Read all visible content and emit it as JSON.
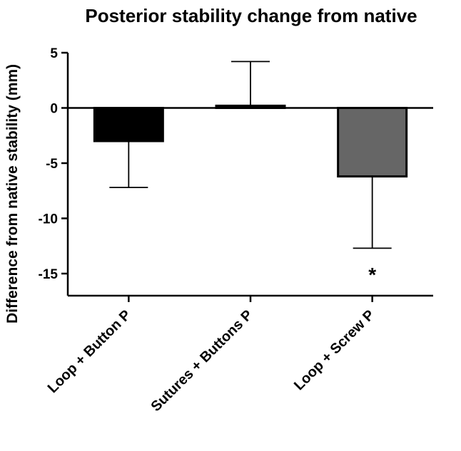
{
  "chart_data": {
    "type": "bar",
    "title": "Posterior stability change from native",
    "xlabel": "",
    "ylabel": "Difference from native stability (mm)",
    "ylim": [
      -17,
      5
    ],
    "yticks": [
      5,
      0,
      -5,
      -10,
      -15
    ],
    "ytick_labels": [
      "5",
      "0",
      "-5",
      "-10",
      "-15"
    ],
    "categories": [
      "Loop + Button P",
      "Sutures + Buttons P",
      "Loop + Screw P"
    ],
    "values": [
      -3.0,
      0.2,
      -6.2
    ],
    "error_bars": [
      -7.2,
      4.2,
      -12.7
    ],
    "colors": [
      "#000000",
      "#000000",
      "#666666"
    ],
    "annotations": [
      {
        "category": "Loop + Screw P",
        "y": -14.8,
        "text": "*"
      }
    ]
  }
}
